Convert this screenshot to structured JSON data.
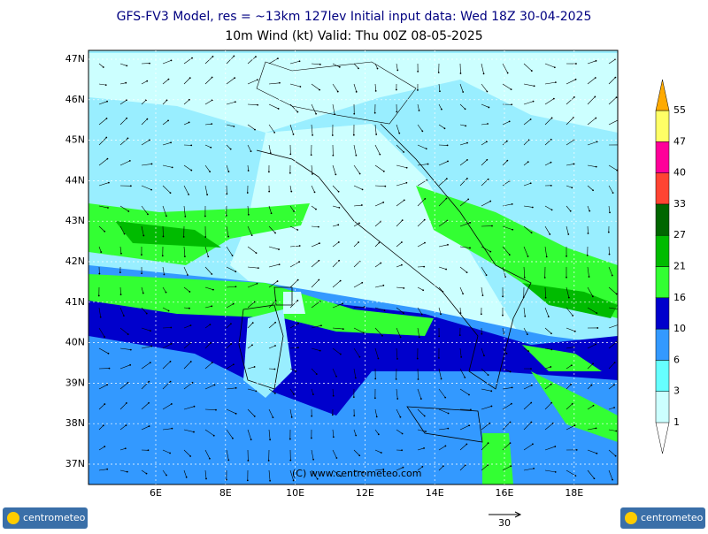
{
  "header": {
    "title_line1": "GFS-FV3 Model, res = ~13km 127lev    Initial input data: Wed 18Z 30-04-2025",
    "title_line2": "10m Wind (kt)  Valid: Thu 00Z 08-05-2025"
  },
  "map": {
    "lat_labels": [
      "47N",
      "46N",
      "45N",
      "44N",
      "43N",
      "42N",
      "41N",
      "40N",
      "39N",
      "38N",
      "37N"
    ],
    "lon_labels": [
      "6E",
      "8E",
      "10E",
      "12E",
      "14E",
      "16E",
      "18E"
    ],
    "copyright": "(C) www.centrometeo.com"
  },
  "legend": {
    "labels": [
      "1",
      "3",
      "6",
      "10",
      "16",
      "21",
      "27",
      "33",
      "40",
      "47",
      "55"
    ],
    "colors": [
      "#ccffff",
      "#66ffff",
      "#3399ff",
      "#0000cc",
      "#33ff33",
      "#00bb00",
      "#006600",
      "#ff4433",
      "#ff0099",
      "#ffff66",
      "#ffaa00"
    ]
  },
  "reference_vector": {
    "label": "30"
  },
  "logos": {
    "left": "centrometeo",
    "right": "centrometeo"
  }
}
